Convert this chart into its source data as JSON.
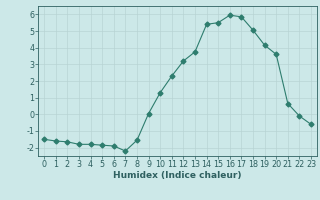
{
  "x": [
    0,
    1,
    2,
    3,
    4,
    5,
    6,
    7,
    8,
    9,
    10,
    11,
    12,
    13,
    14,
    15,
    16,
    17,
    18,
    19,
    20,
    21,
    22,
    23
  ],
  "y": [
    -1.5,
    -1.6,
    -1.65,
    -1.8,
    -1.8,
    -1.85,
    -1.9,
    -2.2,
    -1.55,
    0.05,
    1.3,
    2.3,
    3.2,
    3.75,
    5.4,
    5.5,
    5.95,
    5.85,
    5.05,
    4.15,
    3.6,
    0.65,
    -0.1,
    -0.6
  ],
  "line_color": "#2e7d6e",
  "marker": "D",
  "marker_size": 2.5,
  "bg_color": "#cce8e8",
  "grid_color": "#b8d4d4",
  "xlabel": "Humidex (Indice chaleur)",
  "xlim": [
    -0.5,
    23.5
  ],
  "ylim": [
    -2.5,
    6.5
  ],
  "yticks": [
    -2,
    -1,
    0,
    1,
    2,
    3,
    4,
    5,
    6
  ],
  "xticks": [
    0,
    1,
    2,
    3,
    4,
    5,
    6,
    7,
    8,
    9,
    10,
    11,
    12,
    13,
    14,
    15,
    16,
    17,
    18,
    19,
    20,
    21,
    22,
    23
  ],
  "tick_color": "#2e6060",
  "label_fontsize": 6.5,
  "tick_fontsize": 5.8
}
